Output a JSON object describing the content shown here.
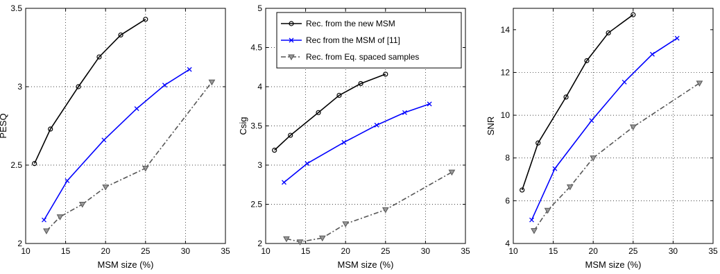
{
  "chart_data": [
    {
      "type": "line",
      "xlabel": "MSM size (%)",
      "ylabel": "PESQ",
      "xlim": [
        10,
        35
      ],
      "ylim": [
        2,
        3.5
      ],
      "xticks": [
        10,
        15,
        20,
        25,
        30,
        35
      ],
      "yticks": [
        2,
        2.5,
        3,
        3.5
      ],
      "grid": true,
      "series": [
        {
          "color": "#000000",
          "marker": "circle",
          "dash": "solid",
          "x": [
            11.1,
            13.1,
            16.6,
            19.2,
            21.9,
            25.0
          ],
          "y": [
            2.51,
            2.73,
            3.0,
            3.19,
            3.33,
            3.43
          ]
        },
        {
          "color": "#0000ff",
          "marker": "x",
          "dash": "solid",
          "x": [
            12.3,
            15.2,
            19.8,
            23.9,
            27.4,
            30.5
          ],
          "y": [
            2.15,
            2.4,
            2.66,
            2.86,
            3.01,
            3.11
          ]
        },
        {
          "color": "#555555",
          "marker": "triangle-down",
          "dash": "dashdot",
          "x": [
            12.6,
            14.3,
            17.1,
            20.0,
            25.0,
            33.3
          ],
          "y": [
            2.08,
            2.17,
            2.25,
            2.36,
            2.48,
            3.03
          ]
        }
      ]
    },
    {
      "type": "line",
      "xlabel": "MSM size (%)",
      "ylabel": "Csig",
      "xlim": [
        10,
        35
      ],
      "ylim": [
        2,
        5
      ],
      "xticks": [
        10,
        15,
        20,
        25,
        30,
        35
      ],
      "yticks": [
        2,
        2.5,
        3,
        3.5,
        4,
        4.5,
        5
      ],
      "grid": true,
      "legend_position": "top-right",
      "legend": [
        "Rec. from the new MSM",
        "Rec from the MSM of [11]",
        "Rec. from Eq. spaced samples"
      ],
      "series": [
        {
          "color": "#000000",
          "marker": "circle",
          "dash": "solid",
          "x": [
            11.1,
            13.1,
            16.6,
            19.2,
            21.9,
            25.0
          ],
          "y": [
            3.19,
            3.38,
            3.67,
            3.89,
            4.04,
            4.16
          ]
        },
        {
          "color": "#0000ff",
          "marker": "x",
          "dash": "solid",
          "x": [
            12.3,
            15.2,
            19.8,
            23.9,
            27.4,
            30.5
          ],
          "y": [
            2.78,
            3.02,
            3.29,
            3.51,
            3.67,
            3.78
          ]
        },
        {
          "color": "#555555",
          "marker": "triangle-down",
          "dash": "dashdot",
          "x": [
            12.6,
            14.3,
            17.1,
            20.0,
            25.0,
            33.3
          ],
          "y": [
            2.06,
            2.02,
            2.07,
            2.25,
            2.43,
            2.91
          ]
        }
      ]
    },
    {
      "type": "line",
      "xlabel": "MSM size (%)",
      "ylabel": "SNR",
      "xlim": [
        10,
        35
      ],
      "ylim": [
        4,
        15
      ],
      "xticks": [
        10,
        15,
        20,
        25,
        30,
        35
      ],
      "yticks": [
        4,
        6,
        8,
        10,
        12,
        14
      ],
      "grid": true,
      "series": [
        {
          "color": "#000000",
          "marker": "circle",
          "dash": "solid",
          "x": [
            11.1,
            13.1,
            16.6,
            19.2,
            21.9,
            25.0
          ],
          "y": [
            6.5,
            8.7,
            10.85,
            12.55,
            13.85,
            14.7
          ]
        },
        {
          "color": "#0000ff",
          "marker": "x",
          "dash": "solid",
          "x": [
            12.3,
            15.2,
            19.8,
            23.9,
            27.4,
            30.5
          ],
          "y": [
            5.1,
            7.5,
            9.75,
            11.55,
            12.85,
            13.6
          ]
        },
        {
          "color": "#555555",
          "marker": "triangle-down",
          "dash": "dashdot",
          "x": [
            12.6,
            14.3,
            17.1,
            20.0,
            25.0,
            33.3
          ],
          "y": [
            4.6,
            5.55,
            6.65,
            8.0,
            9.45,
            11.5
          ]
        }
      ]
    }
  ]
}
